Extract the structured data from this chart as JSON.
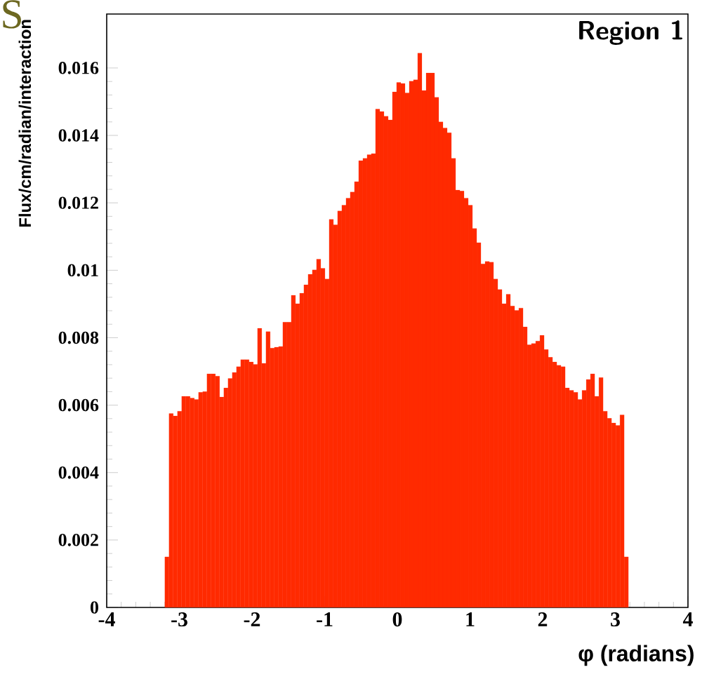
{
  "chart_data": {
    "type": "histogram",
    "xlabel": "φ (radians)",
    "ylabel": "Flux/cm/radian/interaction",
    "color": "#ff2a00",
    "annotations": [
      "Region 1",
      "S"
    ],
    "xlim": [
      -4,
      4
    ],
    "xticks": [
      -4,
      -3,
      -2,
      -1,
      0,
      1,
      2,
      3,
      4
    ],
    "ylim": [
      0,
      0.0176
    ],
    "yticks": [
      0,
      0.002,
      0.004,
      0.006,
      0.008,
      0.01,
      0.012,
      0.014,
      0.016
    ],
    "grid": false,
    "bins": [
      -3.2,
      -3.142,
      -3.084,
      -3.026,
      -2.968,
      -2.91,
      -2.852,
      -2.794,
      -2.736,
      -2.678,
      -2.62,
      -2.562,
      -2.504,
      -2.446,
      -2.388,
      -2.33,
      -2.272,
      -2.214,
      -2.156,
      -2.098,
      -2.04,
      -1.982,
      -1.924,
      -1.866,
      -1.808,
      -1.75,
      -1.692,
      -1.634,
      -1.576,
      -1.518,
      -1.46,
      -1.402,
      -1.344,
      -1.286,
      -1.228,
      -1.17,
      -1.112,
      -1.054,
      -0.996,
      -0.938,
      -0.88,
      -0.822,
      -0.764,
      -0.706,
      -0.648,
      -0.59,
      -0.532,
      -0.474,
      -0.416,
      -0.358,
      -0.3,
      -0.242,
      -0.184,
      -0.126,
      -0.068,
      -0.01,
      0.048,
      0.106,
      0.164,
      0.222,
      0.28,
      0.338,
      0.396,
      0.454,
      0.512,
      0.57,
      0.628,
      0.686,
      0.744,
      0.802,
      0.86,
      0.918,
      0.976,
      1.034,
      1.092,
      1.15,
      1.208,
      1.266,
      1.324,
      1.382,
      1.44,
      1.498,
      1.556,
      1.614,
      1.672,
      1.73,
      1.788,
      1.846,
      1.904,
      1.962,
      2.02,
      2.078,
      2.136,
      2.194,
      2.252,
      2.31,
      2.368,
      2.426,
      2.484,
      2.542,
      2.6,
      2.658,
      2.716,
      2.774,
      2.832,
      2.89,
      2.948,
      3.006,
      3.064,
      3.122,
      3.18
    ],
    "values": [
      0.0015,
      0.00575,
      0.00568,
      0.00582,
      0.00626,
      0.00626,
      0.00621,
      0.00617,
      0.00638,
      0.0064,
      0.00693,
      0.00693,
      0.00686,
      0.00624,
      0.00651,
      0.00679,
      0.00697,
      0.00714,
      0.00735,
      0.00735,
      0.00728,
      0.00721,
      0.00828,
      0.00724,
      0.00818,
      0.00769,
      0.00772,
      0.00774,
      0.00846,
      0.00846,
      0.00926,
      0.00901,
      0.00932,
      0.00957,
      0.00988,
      0.01001,
      0.01033,
      0.01006,
      0.00974,
      0.01151,
      0.01135,
      0.01176,
      0.01193,
      0.01214,
      0.01232,
      0.01263,
      0.01325,
      0.01332,
      0.01343,
      0.01346,
      0.01478,
      0.01471,
      0.01457,
      0.01446,
      0.01529,
      0.01557,
      0.01554,
      0.01526,
      0.01561,
      0.01565,
      0.01644,
      0.01533,
      0.01585,
      0.01585,
      0.01513,
      0.0144,
      0.01422,
      0.01408,
      0.01332,
      0.01238,
      0.01235,
      0.01214,
      0.01193,
      0.01124,
      0.01082,
      0.01019,
      0.01026,
      0.01024,
      0.00974,
      0.00943,
      0.00901,
      0.00929,
      0.00894,
      0.00881,
      0.00888,
      0.00832,
      0.00779,
      0.00783,
      0.0079,
      0.00807,
      0.00765,
      0.00742,
      0.00728,
      0.00718,
      0.00714,
      0.00651,
      0.00644,
      0.00638,
      0.00617,
      0.00644,
      0.00676,
      0.00693,
      0.00626,
      0.00682,
      0.00582,
      0.00561,
      0.00547,
      0.0054,
      0.00571,
      0.0015
    ]
  }
}
